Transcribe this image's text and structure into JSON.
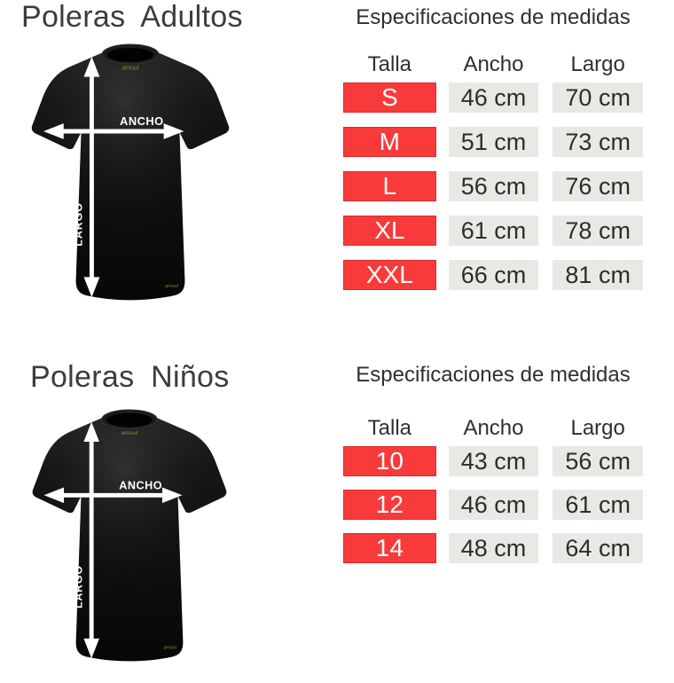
{
  "adults": {
    "title": "Poleras Adultos",
    "table": {
      "title": "Especificaciones de medidas",
      "columns": [
        "Talla",
        "Ancho",
        "Largo"
      ],
      "rows": [
        [
          "S",
          "46 cm",
          "70 cm"
        ],
        [
          "M",
          "51 cm",
          "73 cm"
        ],
        [
          "L",
          "56 cm",
          "76 cm"
        ],
        [
          "XL",
          "61 cm",
          "78 cm"
        ],
        [
          "XXL",
          "66 cm",
          "81 cm"
        ]
      ]
    }
  },
  "kids": {
    "title": "Poleras Niños",
    "table": {
      "title": "Especificaciones de medidas",
      "columns": [
        "Talla",
        "Ancho",
        "Largo"
      ],
      "rows": [
        [
          "10",
          "43 cm",
          "56 cm"
        ],
        [
          "12",
          "46 cm",
          "61 cm"
        ],
        [
          "14",
          "48 cm",
          "64 cm"
        ]
      ]
    }
  },
  "shirt": {
    "width_label": "ANCHO",
    "length_label": "LARGO",
    "brand_logo": "amoul"
  },
  "colors": {
    "size_cell_red": "#f93a3a",
    "size_cell_border": "#df2b2b",
    "value_cell_gray": "#e9e8e4",
    "title_text": "#3c3c3c",
    "value_text": "#2d2d2d",
    "arrow_white": "#ffffff",
    "logo_green": "#7a9a33",
    "shirt_black": "#0c0c0c"
  }
}
